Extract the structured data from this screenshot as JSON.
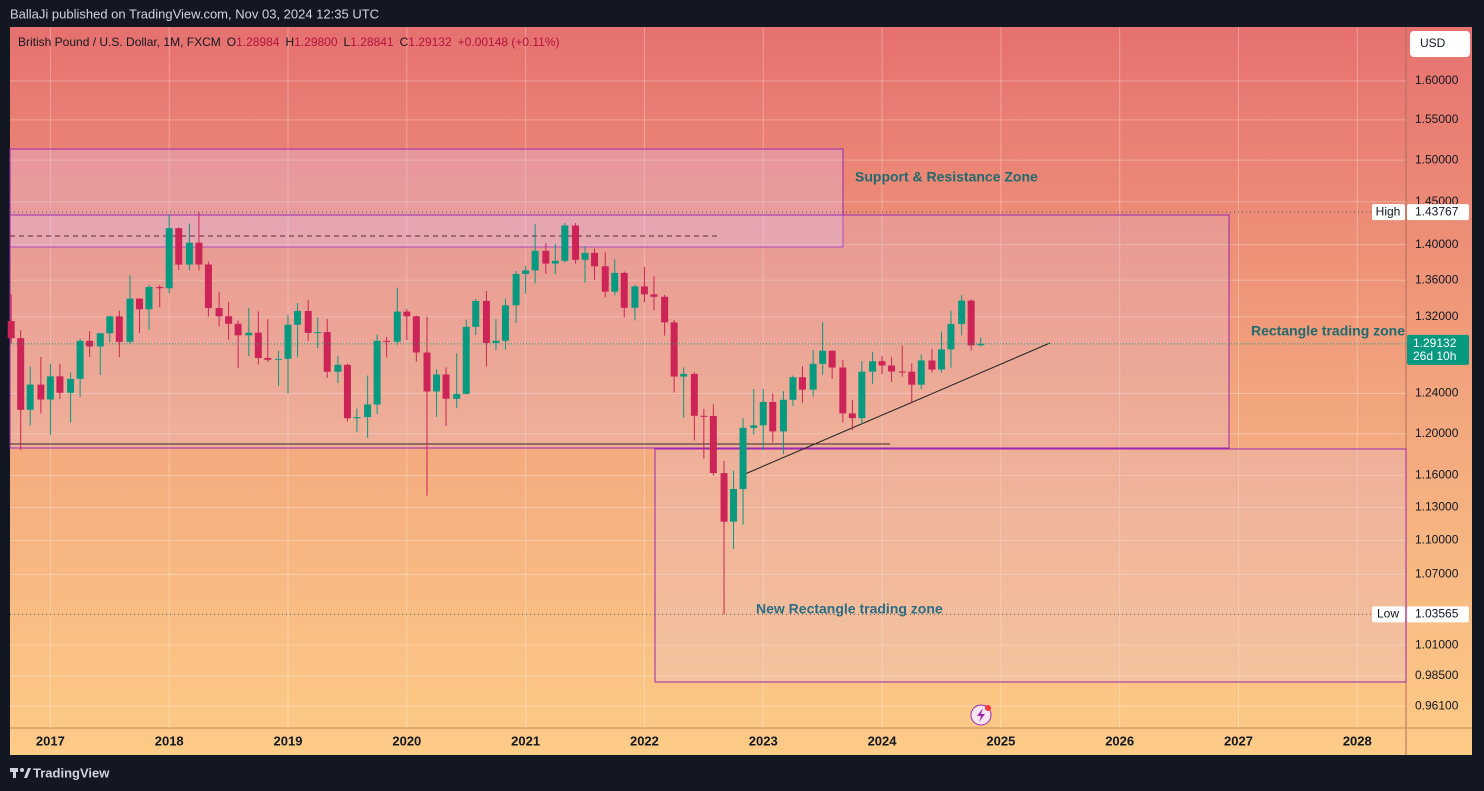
{
  "header": {
    "published": "BallaJi published on TradingView.com, Nov 03, 2024 12:35 UTC",
    "currency": "USD",
    "brand": "TradingView"
  },
  "chart_data": {
    "type": "candlestick",
    "legend": {
      "symbol": "British Pound / U.S. Dollar, 1M, FXCM",
      "items": [
        {
          "key": "O",
          "value": "1.28984"
        },
        {
          "key": "H",
          "value": "1.29800"
        },
        {
          "key": "L",
          "value": "1.28841"
        },
        {
          "key": "C",
          "value": "1.29132"
        }
      ],
      "change": "+0.00148 (+0.11%)"
    },
    "annotations": [
      "Support & Resistance Zone",
      "Rectangle trading zone",
      "New Rectangle trading zone"
    ],
    "x": [
      2016.67,
      2016.75,
      2016.83,
      2016.92,
      2017,
      2017.08,
      2017.17,
      2017.25,
      2017.33,
      2017.42,
      2017.5,
      2017.58,
      2017.67,
      2017.75,
      2017.83,
      2017.92,
      2018,
      2018.08,
      2018.17,
      2018.25,
      2018.33,
      2018.42,
      2018.5,
      2018.58,
      2018.67,
      2018.75,
      2018.83,
      2018.92,
      2019,
      2019.08,
      2019.17,
      2019.25,
      2019.33,
      2019.42,
      2019.5,
      2019.58,
      2019.67,
      2019.75,
      2019.83,
      2019.92,
      2020,
      2020.08,
      2020.17,
      2020.25,
      2020.33,
      2020.42,
      2020.5,
      2020.58,
      2020.67,
      2020.75,
      2020.83,
      2020.92,
      2021,
      2021.08,
      2021.17,
      2021.25,
      2021.33,
      2021.42,
      2021.5,
      2021.58,
      2021.67,
      2021.75,
      2021.83,
      2021.92,
      2022,
      2022.08,
      2022.17,
      2022.25,
      2022.33,
      2022.42,
      2022.5,
      2022.58,
      2022.67,
      2022.75,
      2022.83,
      2022.92,
      2023,
      2023.08,
      2023.17,
      2023.25,
      2023.33,
      2023.42,
      2023.5,
      2023.58,
      2023.67,
      2023.75,
      2023.83,
      2023.92,
      2024,
      2024.08,
      2024.17,
      2024.25,
      2024.33,
      2024.42,
      2024.5,
      2024.58,
      2024.67,
      2024.75,
      2024.83
    ],
    "open": [
      1.3155,
      1.2973,
      1.2237,
      1.2491,
      1.234,
      1.2575,
      1.2408,
      1.2549,
      1.2944,
      1.2886,
      1.3025,
      1.3205,
      1.2934,
      1.3398,
      1.3282,
      1.3526,
      1.3512,
      1.419,
      1.3775,
      1.4023,
      1.3776,
      1.3296,
      1.3206,
      1.3126,
      1.3003,
      1.3031,
      1.2765,
      1.2746,
      1.2756,
      1.3116,
      1.3264,
      1.3029,
      1.3037,
      1.2622,
      1.2694,
      1.2153,
      1.2164,
      1.229,
      1.2945,
      1.2935,
      1.3257,
      1.3206,
      1.2822,
      1.2421,
      1.2594,
      1.2347,
      1.2397,
      1.3093,
      1.3373,
      1.2922,
      1.2945,
      1.3325,
      1.367,
      1.371,
      1.393,
      1.3786,
      1.3817,
      1.4221,
      1.3829,
      1.3907,
      1.3756,
      1.3474,
      1.3682,
      1.3298,
      1.3532,
      1.3445,
      1.3418,
      1.3141,
      1.2573,
      1.26,
      1.2177,
      1.2175,
      1.1621,
      1.117,
      1.1471,
      1.2058,
      1.2083,
      1.2315,
      1.2023,
      1.2337,
      1.2566,
      1.2439,
      1.2704,
      1.284,
      1.2666,
      1.2201,
      1.2154,
      1.2623,
      1.2731,
      1.2687,
      1.2625,
      1.2623,
      1.249,
      1.2739,
      1.2645,
      1.2855,
      1.3124,
      1.3376,
      1.28984
    ],
    "high": [
      1.3445,
      1.3058,
      1.2675,
      1.2775,
      1.2706,
      1.2706,
      1.2615,
      1.2965,
      1.3048,
      1.303,
      1.3213,
      1.3267,
      1.3658,
      1.34,
      1.3549,
      1.3549,
      1.4346,
      1.4199,
      1.4245,
      1.43767,
      1.3809,
      1.3473,
      1.3363,
      1.3161,
      1.3298,
      1.3259,
      1.3176,
      1.284,
      1.3218,
      1.335,
      1.3382,
      1.3197,
      1.3177,
      1.2784,
      1.2708,
      1.2249,
      1.2583,
      1.3012,
      1.2986,
      1.3515,
      1.3285,
      1.3213,
      1.3201,
      1.2647,
      1.2667,
      1.2813,
      1.3171,
      1.3395,
      1.3482,
      1.3177,
      1.3398,
      1.3704,
      1.3759,
      1.4241,
      1.4017,
      1.4009,
      1.425,
      1.4249,
      1.3984,
      1.3958,
      1.3913,
      1.3835,
      1.3698,
      1.3548,
      1.3749,
      1.3644,
      1.3438,
      1.3167,
      1.2667,
      1.2617,
      1.2246,
      1.2294,
      1.1738,
      1.1645,
      1.2154,
      1.2446,
      1.2448,
      1.2401,
      1.2424,
      1.2584,
      1.268,
      1.2849,
      1.3142,
      1.2841,
      1.2747,
      1.2337,
      1.2733,
      1.2828,
      1.2785,
      1.2773,
      1.2894,
      1.2709,
      1.2801,
      1.286,
      1.3044,
      1.3266,
      1.3434,
      1.3391,
      1.298
    ],
    "low": [
      1.2915,
      1.1841,
      1.2083,
      1.2201,
      1.1986,
      1.2345,
      1.2109,
      1.2365,
      1.2775,
      1.2589,
      1.2932,
      1.2774,
      1.2912,
      1.3027,
      1.3062,
      1.3302,
      1.3457,
      1.3713,
      1.3712,
      1.3711,
      1.3204,
      1.3099,
      1.2957,
      1.2662,
      1.2785,
      1.2696,
      1.2723,
      1.2478,
      1.24,
      1.2773,
      1.2945,
      1.2865,
      1.2559,
      1.2506,
      1.2119,
      1.2015,
      1.1959,
      1.2195,
      1.2769,
      1.2901,
      1.2954,
      1.2725,
      1.1409,
      1.2165,
      1.2076,
      1.2252,
      1.2391,
      1.3006,
      1.2676,
      1.2845,
      1.2855,
      1.3135,
      1.3452,
      1.3565,
      1.3671,
      1.3669,
      1.3799,
      1.3786,
      1.3571,
      1.3602,
      1.3412,
      1.3434,
      1.3195,
      1.3161,
      1.3358,
      1.3273,
      1.3,
      1.2411,
      1.2155,
      1.1934,
      1.176,
      1.16,
      1.03565,
      1.0924,
      1.1143,
      1.1992,
      1.1841,
      1.1915,
      1.1803,
      1.2274,
      1.2308,
      1.2369,
      1.2591,
      1.2548,
      1.2111,
      1.2037,
      1.2096,
      1.25,
      1.2597,
      1.2519,
      1.2573,
      1.23,
      1.2445,
      1.2613,
      1.2614,
      1.2665,
      1.3001,
      1.2844,
      1.28841
    ],
    "close": [
      1.2973,
      1.2237,
      1.2491,
      1.234,
      1.2575,
      1.2408,
      1.2549,
      1.2944,
      1.2886,
      1.3025,
      1.3205,
      1.2934,
      1.3398,
      1.3282,
      1.3526,
      1.3512,
      1.419,
      1.3775,
      1.4023,
      1.3776,
      1.3296,
      1.3206,
      1.3126,
      1.3003,
      1.3031,
      1.2765,
      1.2746,
      1.2756,
      1.3116,
      1.3264,
      1.3029,
      1.3037,
      1.2622,
      1.2694,
      1.2153,
      1.2164,
      1.229,
      1.2945,
      1.2935,
      1.3257,
      1.3206,
      1.2822,
      1.2421,
      1.2594,
      1.2347,
      1.2397,
      1.3093,
      1.3373,
      1.2922,
      1.2945,
      1.3325,
      1.367,
      1.371,
      1.393,
      1.3786,
      1.3817,
      1.4221,
      1.3829,
      1.3907,
      1.3756,
      1.3474,
      1.3682,
      1.3298,
      1.3532,
      1.3445,
      1.3418,
      1.3141,
      1.2573,
      1.26,
      1.2177,
      1.2175,
      1.1621,
      1.117,
      1.1471,
      1.2058,
      1.2083,
      1.2315,
      1.2023,
      1.2337,
      1.2566,
      1.2439,
      1.2704,
      1.284,
      1.2666,
      1.2201,
      1.2154,
      1.2623,
      1.2731,
      1.2687,
      1.2625,
      1.2623,
      1.249,
      1.2739,
      1.2645,
      1.2855,
      1.3124,
      1.3376,
      1.2897,
      1.29132
    ],
    "up_color": "#089981",
    "down_color": "#cc2456",
    "xlim": [
      2016.66,
      2028.41
    ],
    "xticks": [
      2017,
      2018,
      2019,
      2020,
      2021,
      2022,
      2023,
      2024,
      2025,
      2026,
      2027,
      2028
    ],
    "ylim": [
      0.944,
      1.672
    ],
    "log_scale": true,
    "grid": true,
    "yticks": [
      {
        "value": 1.6,
        "label": "1.60000"
      },
      {
        "value": 1.55,
        "label": "1.55000"
      },
      {
        "value": 1.5,
        "label": "1.50000"
      },
      {
        "value": 1.45,
        "label": "1.45000"
      },
      {
        "value": 1.4,
        "label": "1.40000"
      },
      {
        "value": 1.36,
        "label": "1.36000"
      },
      {
        "value": 1.32,
        "label": "1.32000"
      },
      {
        "value": 1.24,
        "label": "1.24000"
      },
      {
        "value": 1.2,
        "label": "1.20000"
      },
      {
        "value": 1.16,
        "label": "1.16000"
      },
      {
        "value": 1.13,
        "label": "1.13000"
      },
      {
        "value": 1.1,
        "label": "1.10000"
      },
      {
        "value": 1.07,
        "label": "1.07000"
      },
      {
        "value": 1.01,
        "label": "1.01000"
      },
      {
        "value": 0.985,
        "label": "0.98500"
      },
      {
        "value": 0.961,
        "label": "0.96100"
      }
    ],
    "price_labels": [
      {
        "label": "High",
        "value": 1.43767
      },
      {
        "label": "Low",
        "value": 1.03565
      }
    ],
    "last_price": {
      "value": 1.29132,
      "countdown": "26d 10h",
      "color": "#089981"
    }
  }
}
